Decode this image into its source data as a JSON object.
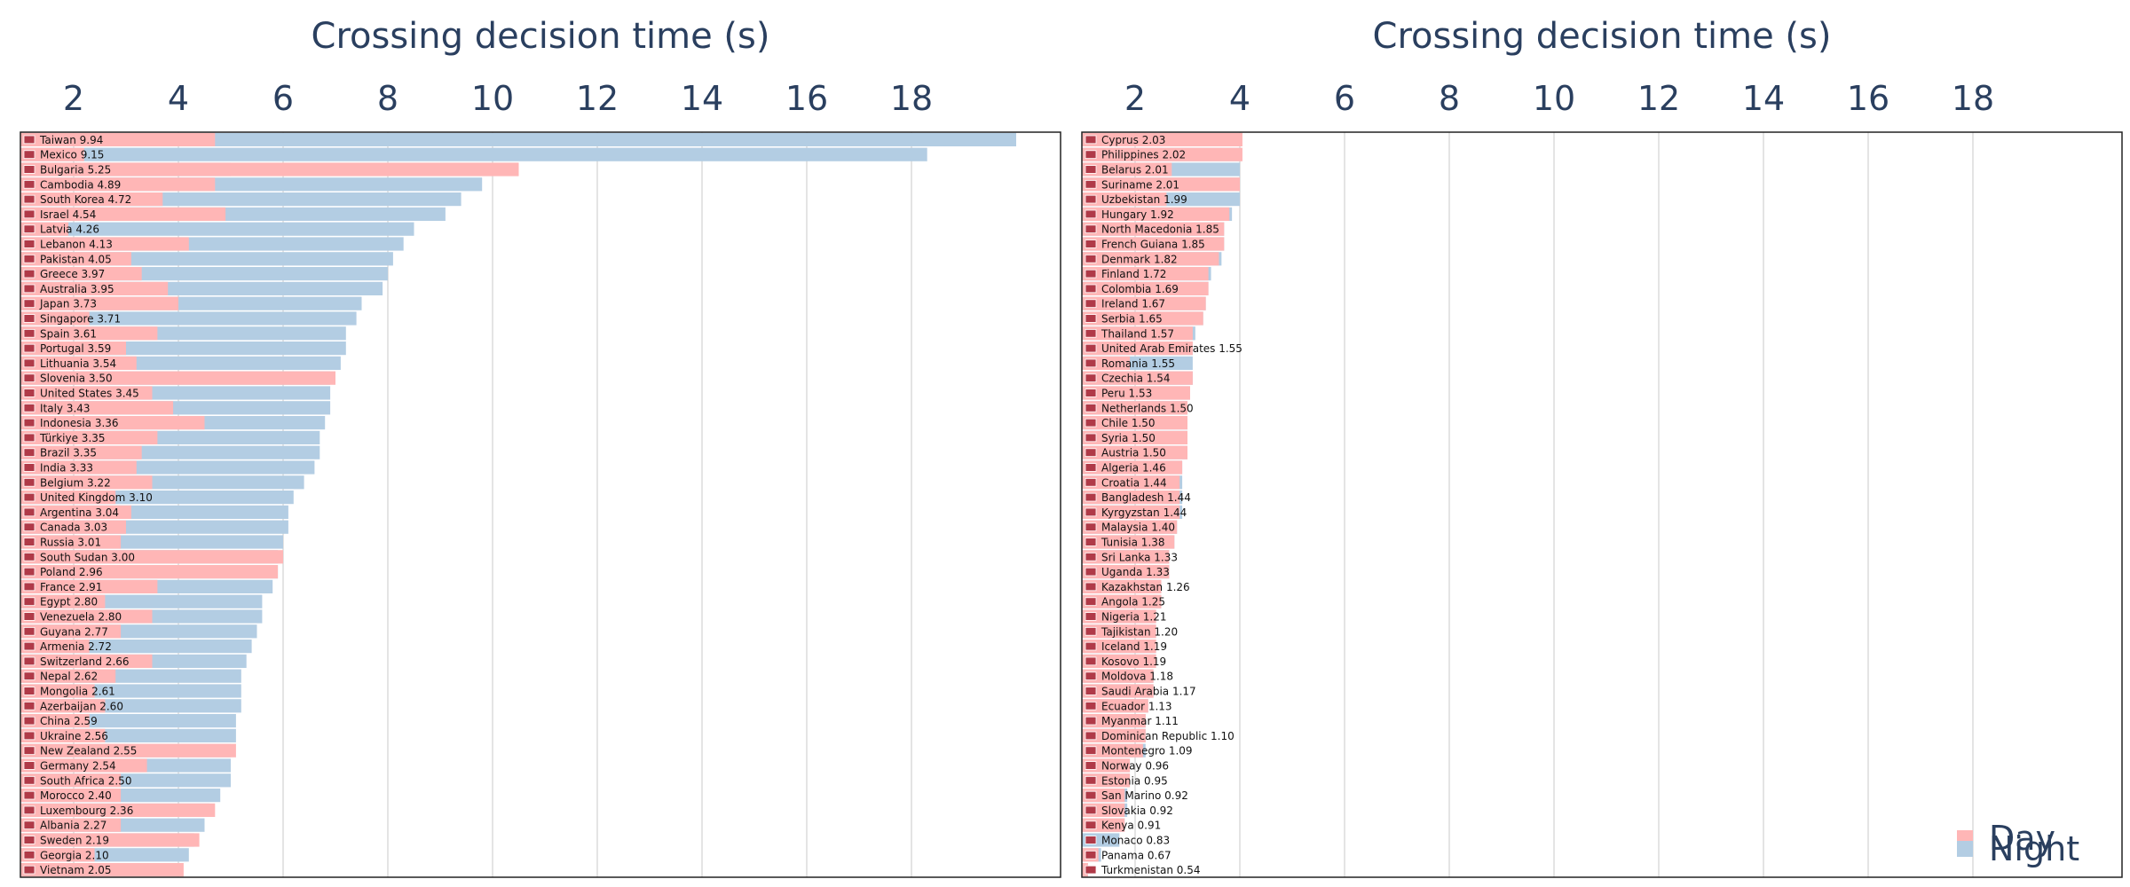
{
  "colors": {
    "day": "#ffb6b6",
    "night": "#b3cde3",
    "grid": "#c8c8c8",
    "axis_text": "#2a3f5f"
  },
  "legend": {
    "items": [
      {
        "name": "Day",
        "color": "#ffb6b6"
      },
      {
        "name": "Night",
        "color": "#b3cde3"
      }
    ],
    "placement": "bottom-right"
  },
  "chart_data": [
    {
      "type": "bar",
      "orientation": "horizontal",
      "title": "",
      "xlabel": "Crossing decision time (s)",
      "xlim": [
        0,
        20
      ],
      "xticks": [
        2,
        4,
        6,
        8,
        10,
        12,
        14,
        16,
        18
      ],
      "grid": true,
      "categories": [
        "Taiwan 9.94",
        "Mexico 9.15",
        "Bulgaria 5.25",
        "Cambodia 4.89",
        "South Korea 4.72",
        "Israel 4.54",
        "Latvia 4.26",
        "Lebanon 4.13",
        "Pakistan 4.05",
        "Greece 3.97",
        "Australia 3.95",
        "Japan 3.73",
        "Singapore 3.71",
        "Spain 3.61",
        "Portugal 3.59",
        "Lithuania 3.54",
        "Slovenia 3.50",
        "United States 3.45",
        "Italy 3.43",
        "Indonesia 3.36",
        "Türkiye 3.35",
        "Brazil 3.35",
        "India 3.33",
        "Belgium 3.22",
        "United Kingdom 3.10",
        "Argentina 3.04",
        "Canada 3.03",
        "Russia 3.01",
        "South Sudan 3.00",
        "Poland 2.96",
        "France 2.91",
        "Egypt 2.80",
        "Venezuela 2.80",
        "Guyana 2.77",
        "Armenia 2.72",
        "Switzerland 2.66",
        "Nepal 2.62",
        "Mongolia 2.61",
        "Azerbaijan 2.60",
        "China 2.59",
        "Ukraine 2.56",
        "New Zealand 2.55",
        "Germany 2.54",
        "South Africa 2.50",
        "Morocco 2.40",
        "Luxembourg 2.36",
        "Albania 2.27",
        "Sweden 2.19",
        "Georgia 2.10",
        "Vietnam 2.05"
      ],
      "series": [
        {
          "name": "Day",
          "values": [
            4.7,
            2.2,
            10.5,
            4.7,
            3.7,
            4.9,
            1.9,
            4.2,
            3.1,
            3.3,
            3.8,
            4.0,
            2.3,
            3.6,
            3.0,
            3.2,
            7.0,
            3.5,
            3.9,
            4.5,
            3.6,
            3.3,
            3.2,
            3.5,
            2.8,
            3.1,
            3.0,
            2.9,
            6.0,
            5.9,
            3.6,
            2.6,
            3.5,
            2.9,
            2.3,
            3.5,
            2.8,
            2.4,
            2.6,
            2.3,
            2.6,
            5.1,
            3.4,
            2.9,
            2.9,
            4.7,
            2.9,
            4.4,
            2.4,
            4.1
          ]
        },
        {
          "name": "Night",
          "values": [
            20.0,
            18.3,
            5.0,
            9.8,
            9.4,
            9.1,
            8.5,
            8.3,
            8.1,
            8.0,
            7.9,
            7.5,
            7.4,
            7.2,
            7.2,
            7.1,
            6.9,
            6.9,
            6.9,
            6.8,
            6.7,
            6.7,
            6.6,
            6.4,
            6.2,
            6.1,
            6.1,
            6.0,
            5.9,
            5.9,
            5.8,
            5.6,
            5.6,
            5.5,
            5.4,
            5.3,
            5.2,
            5.2,
            5.2,
            5.1,
            5.1,
            5.0,
            5.0,
            5.0,
            4.8,
            4.6,
            4.5,
            4.3,
            4.2,
            4.0
          ]
        }
      ]
    },
    {
      "type": "bar",
      "orientation": "horizontal",
      "title": "",
      "xlabel": "Crossing decision time (s)",
      "xlim": [
        0,
        20
      ],
      "xticks": [
        2,
        4,
        6,
        8,
        10,
        12,
        14,
        16,
        18
      ],
      "grid": true,
      "categories": [
        "Cyprus 2.03",
        "Philippines 2.02",
        "Belarus 2.01",
        "Suriname 2.01",
        "Uzbekistan 1.99",
        "Hungary 1.92",
        "North Macedonia 1.85",
        "French Guiana 1.85",
        "Denmark 1.82",
        "Finland 1.72",
        "Colombia 1.69",
        "Ireland 1.67",
        "Serbia 1.65",
        "Thailand 1.57",
        "United Arab Emirates 1.55",
        "Romania 1.55",
        "Czechia 1.54",
        "Peru 1.53",
        "Netherlands 1.50",
        "Chile 1.50",
        "Syria 1.50",
        "Austria 1.50",
        "Algeria 1.46",
        "Croatia 1.44",
        "Bangladesh 1.44",
        "Kyrgyzstan 1.44",
        "Malaysia 1.40",
        "Tunisia 1.38",
        "Sri Lanka 1.33",
        "Uganda 1.33",
        "Kazakhstan 1.26",
        "Angola 1.25",
        "Nigeria 1.21",
        "Tajikistan 1.20",
        "Iceland 1.19",
        "Kosovo 1.19",
        "Moldova 1.18",
        "Saudi Arabia 1.17",
        "Ecuador 1.13",
        "Myanmar 1.11",
        "Dominican Republic 1.10",
        "Montenegro 1.09",
        "Norway 0.96",
        "Estonia 0.95",
        "San Marino 0.92",
        "Slovakia 0.92",
        "Kenya 0.91",
        "Monaco 0.83",
        "Panama 0.67",
        "Turkmenistan 0.54"
      ],
      "series": [
        {
          "name": "Day",
          "values": [
            4.05,
            4.05,
            2.7,
            4.0,
            2.6,
            3.8,
            3.7,
            3.7,
            3.6,
            3.4,
            3.4,
            3.35,
            3.3,
            3.1,
            3.1,
            1.9,
            3.1,
            3.05,
            3.0,
            3.0,
            3.0,
            3.0,
            2.9,
            2.85,
            2.85,
            2.85,
            2.8,
            2.75,
            2.65,
            2.65,
            2.5,
            2.5,
            2.4,
            2.4,
            2.4,
            2.4,
            2.35,
            2.35,
            2.25,
            2.2,
            2.2,
            2.15,
            1.9,
            1.9,
            1.8,
            1.8,
            1.8,
            0.0,
            1.3,
            1.1
          ]
        },
        {
          "name": "Night",
          "values": [
            4.0,
            4.0,
            4.0,
            4.0,
            4.0,
            3.85,
            3.7,
            3.7,
            3.65,
            3.45,
            3.4,
            3.35,
            3.3,
            3.15,
            3.1,
            3.1,
            3.1,
            3.05,
            3.0,
            3.0,
            3.0,
            3.0,
            2.9,
            2.9,
            2.9,
            2.9,
            2.8,
            2.75,
            2.65,
            2.65,
            2.5,
            2.5,
            2.4,
            2.4,
            2.4,
            2.4,
            2.35,
            2.35,
            2.25,
            2.2,
            2.2,
            2.2,
            1.9,
            1.9,
            1.85,
            1.85,
            1.8,
            1.7,
            1.35,
            1.1
          ]
        }
      ]
    }
  ]
}
